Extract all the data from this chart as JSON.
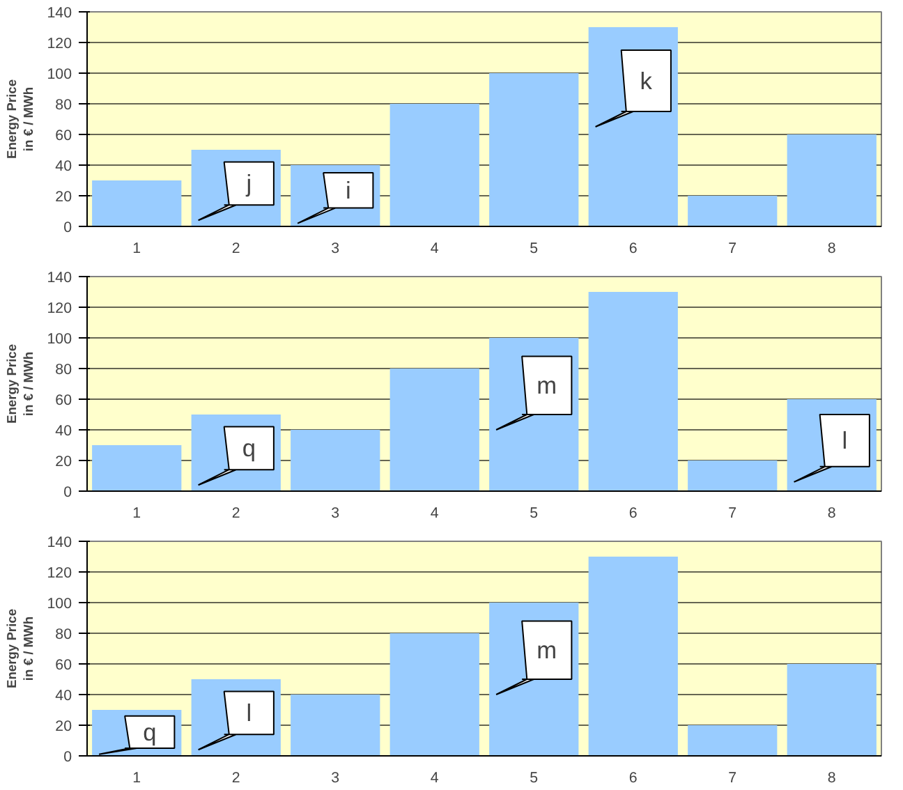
{
  "chart_data": [
    {
      "type": "bar",
      "ylabel": "Energy Price\nin € / MWh",
      "categories": [
        "1",
        "2",
        "3",
        "4",
        "5",
        "6",
        "7",
        "8"
      ],
      "values": [
        30,
        50,
        40,
        80,
        100,
        130,
        20,
        60
      ],
      "color": "#99ccff",
      "ylim": [
        0,
        140
      ],
      "yticks": [
        0,
        20,
        40,
        60,
        80,
        100,
        120,
        140
      ],
      "grid": "y",
      "annotations": [
        "j",
        "i",
        "k"
      ]
    },
    {
      "type": "bar",
      "ylabel": "Energy Price\nin € / MWh",
      "categories": [
        "1",
        "2",
        "3",
        "4",
        "5",
        "6",
        "7",
        "8"
      ],
      "values": [
        30,
        50,
        40,
        80,
        100,
        130,
        20,
        60
      ],
      "color": "#99ccff",
      "ylim": [
        0,
        140
      ],
      "yticks": [
        0,
        20,
        40,
        60,
        80,
        100,
        120,
        140
      ],
      "grid": "y",
      "annotations": [
        "q",
        "m",
        "l"
      ]
    },
    {
      "type": "bar",
      "ylabel": "Energy Price\nin € / MWh",
      "categories": [
        "1",
        "2",
        "3",
        "4",
        "5",
        "6",
        "7",
        "8"
      ],
      "values": [
        30,
        50,
        40,
        80,
        100,
        130,
        20,
        60
      ],
      "color": "#99ccff",
      "ylim": [
        0,
        140
      ],
      "yticks": [
        0,
        20,
        40,
        60,
        80,
        100,
        120,
        140
      ],
      "grid": "y",
      "annotations": [
        "q",
        "l",
        "m"
      ]
    }
  ]
}
